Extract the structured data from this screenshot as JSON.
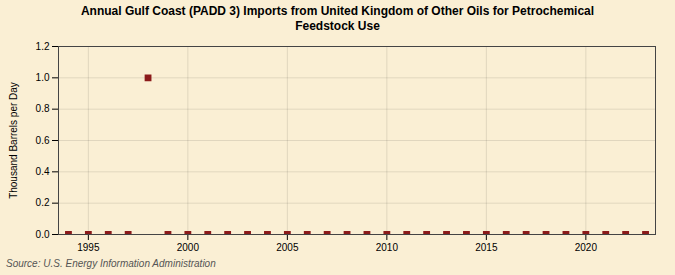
{
  "chart_data": {
    "type": "scatter",
    "title": "Annual Gulf Coast (PADD 3) Imports from United Kingdom of Other Oils for Petrochemical\nFeedstock Use",
    "ylabel": "Thousand Barrels per Day",
    "source": "Source: U.S. Energy Information Administration",
    "x": [
      1994,
      1995,
      1996,
      1997,
      1998,
      1999,
      2000,
      2001,
      2002,
      2003,
      2004,
      2005,
      2006,
      2007,
      2008,
      2009,
      2010,
      2011,
      2012,
      2013,
      2014,
      2015,
      2016,
      2017,
      2018,
      2019,
      2020,
      2021,
      2022,
      2023
    ],
    "values": [
      0,
      0,
      0,
      0,
      1.0,
      0,
      0,
      0,
      0,
      0,
      0,
      0,
      0,
      0,
      0,
      0,
      0,
      0,
      0,
      0,
      0,
      0,
      0,
      0,
      0,
      0,
      0,
      0,
      0,
      0
    ],
    "color": "#8b1a1a",
    "marker": "square",
    "xlim": [
      1993.5,
      2023.5
    ],
    "xticks": [
      1995,
      2000,
      2005,
      2010,
      2015,
      2020
    ],
    "ylim": [
      0.0,
      1.2
    ],
    "yticks": [
      {
        "value": 0,
        "label": "0.0"
      },
      0.2,
      0.4,
      0.6,
      0.8,
      {
        "value": 1,
        "label": "1.0"
      },
      1.2
    ],
    "grid": true
  }
}
